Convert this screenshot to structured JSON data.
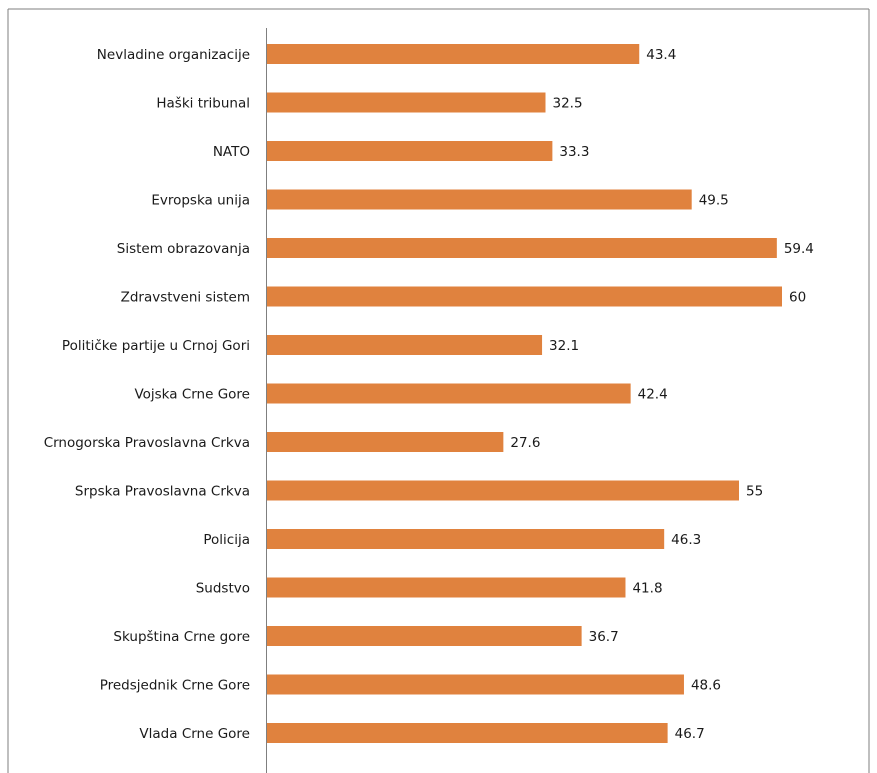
{
  "chart_data": {
    "type": "bar",
    "orientation": "horizontal",
    "categories": [
      "Nevladine organizacije",
      "Haški tribunal",
      "NATO",
      "Evropska unija",
      "Sistem obrazovanja",
      "Zdravstveni sistem",
      "Političke partije u Crnoj Gori",
      "Vojska Crne Gore",
      "Crnogorska Pravoslavna Crkva",
      "Srpska Pravoslavna Crkva",
      "Policija",
      "Sudstvo",
      "Skupština Crne gore",
      "Predsjednik Crne Gore",
      "Vlada Crne Gore"
    ],
    "values": [
      43.4,
      32.5,
      33.3,
      49.5,
      59.4,
      60,
      32.1,
      42.4,
      27.6,
      55,
      46.3,
      41.8,
      36.7,
      48.6,
      46.7
    ],
    "value_labels": [
      "43.4",
      "32.5",
      "33.3",
      "49.5",
      "59.4",
      "60",
      "32.1",
      "42.4",
      "27.6",
      "55",
      "46.3",
      "41.8",
      "36.7",
      "48.6",
      "46.7"
    ],
    "xlim": [
      0,
      60
    ],
    "grid": false,
    "colors": {
      "bar": "#E0823E",
      "axis": "#7f7f7f",
      "frame": "#7f7f7f"
    }
  }
}
